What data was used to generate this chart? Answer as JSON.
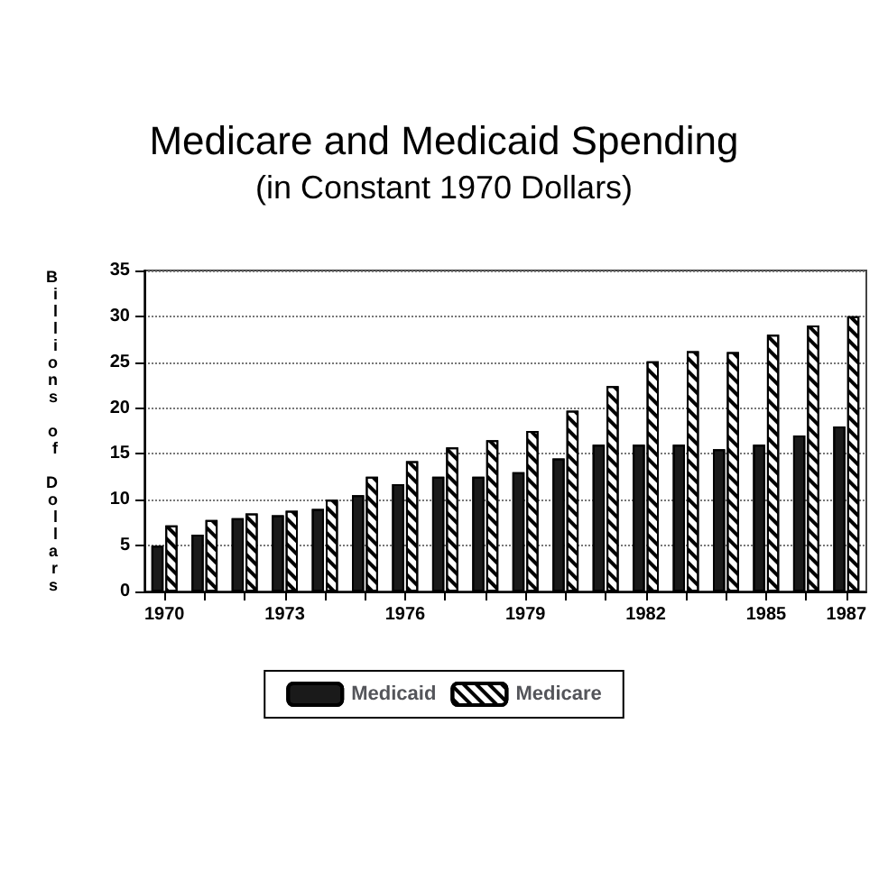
{
  "chart_data": {
    "type": "bar",
    "title": "Medicare and Medicaid Spending",
    "subtitle": "(in Constant 1970 Dollars)",
    "ylabel": "Billions of Dollars",
    "categories": [
      "1970",
      null,
      null,
      "1973",
      null,
      null,
      "1976",
      null,
      null,
      "1979",
      null,
      null,
      "1982",
      null,
      null,
      "1985",
      null,
      "1987"
    ],
    "series": [
      {
        "name": "Medicaid",
        "color": "#1a1a1a",
        "values": [
          5,
          6.2,
          8,
          8.3,
          9,
          10.5,
          11.7,
          12.5,
          12.5,
          13,
          14.5,
          16,
          16,
          16,
          15.5,
          16,
          17,
          18
        ]
      },
      {
        "name": "Medicare",
        "color": "#ffffff",
        "values": [
          7.2,
          7.8,
          8.5,
          8.8,
          10,
          12.5,
          14.2,
          15.7,
          16.5,
          17.5,
          19.7,
          22.4,
          25.1,
          26.2,
          26.1,
          28,
          29,
          30
        ]
      }
    ],
    "ylim": [
      0,
      35
    ],
    "yticks": [
      0,
      5,
      10,
      15,
      20,
      25,
      30,
      35
    ],
    "grid": "y",
    "legend": "bottom"
  }
}
